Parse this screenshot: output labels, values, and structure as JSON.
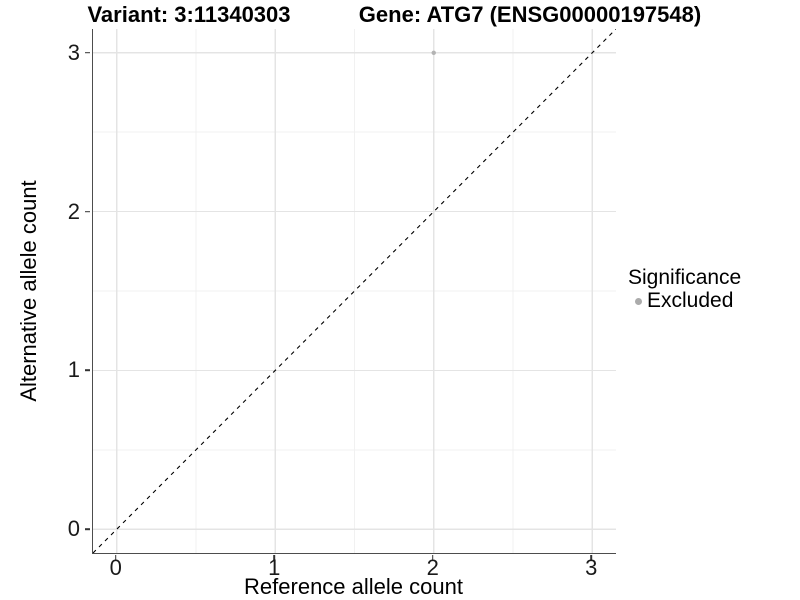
{
  "chart_data": {
    "type": "scatter",
    "title_left": "Variant: 3:11340303",
    "title_right": "Gene: ATG7 (ENSG00000197548)",
    "xlabel": "Reference allele count",
    "ylabel": "Alternative allele count",
    "xlim": [
      -0.15,
      3.15
    ],
    "ylim": [
      -0.15,
      3.15
    ],
    "x_ticks": [
      0,
      1,
      2,
      3
    ],
    "y_ticks": [
      0,
      1,
      2,
      3
    ],
    "x_minor": [
      0.5,
      1.5,
      2.5
    ],
    "y_minor": [
      0.5,
      1.5,
      2.5
    ],
    "grid": "major and minor gridlines, white panel background",
    "points": [
      {
        "x": 2,
        "y": 3,
        "series": "Excluded"
      }
    ],
    "reference_line": {
      "slope": 1,
      "intercept": 0,
      "style": "dashed",
      "color": "#000000"
    },
    "legend": {
      "title": "Significance",
      "position": "right",
      "entries": [
        {
          "label": "Excluded",
          "color": "#b3b3b3"
        }
      ]
    },
    "colors": {
      "point": "#b3b3b3",
      "legend_dot": "#ababab",
      "grid_major": "#e4e4e4",
      "grid_minor": "#f1f1f1",
      "axis_line": "#4d4d4d",
      "tick": "#333333"
    }
  }
}
